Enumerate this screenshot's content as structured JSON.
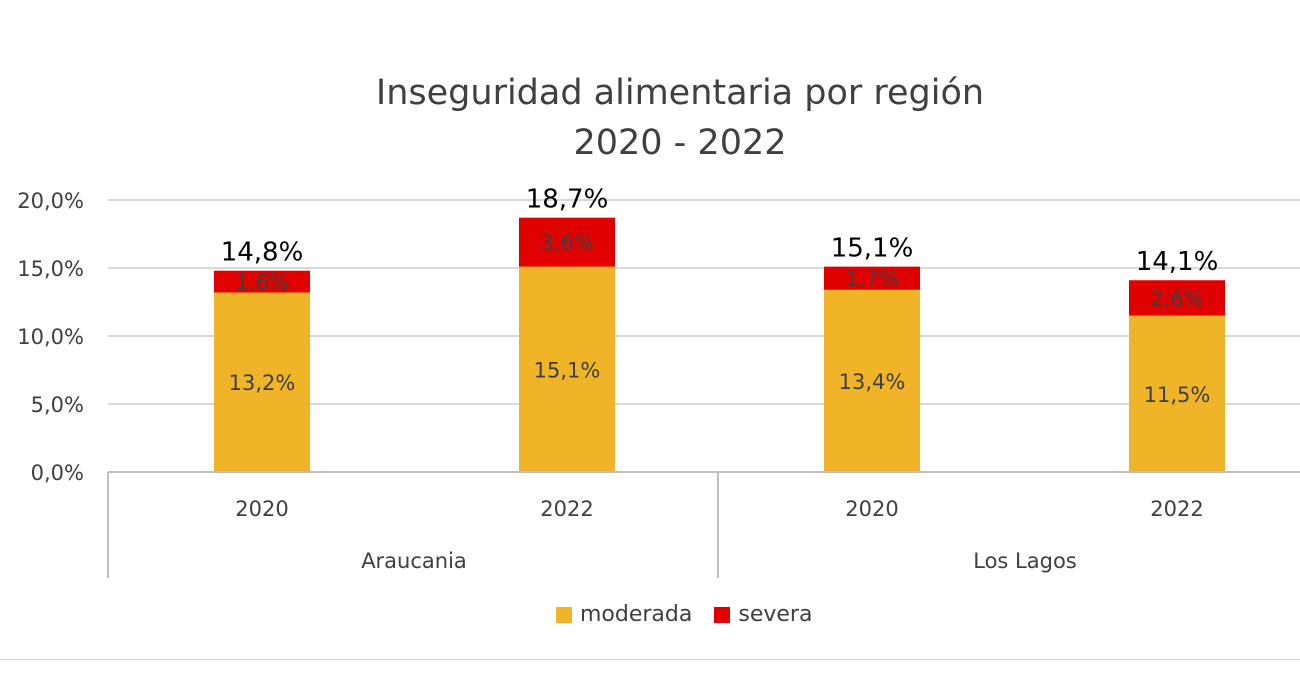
{
  "chart_data": {
    "type": "bar",
    "stacked": true,
    "title_lines": [
      "Inseguridad alimentaria por región",
      "2020 - 2022"
    ],
    "groups": [
      {
        "name": "Araucania",
        "categories": [
          "2020",
          "2022"
        ]
      },
      {
        "name": "Los Lagos",
        "categories": [
          "2020",
          "2022"
        ]
      }
    ],
    "categories": [
      "2020",
      "2022",
      "2020",
      "2022"
    ],
    "series": [
      {
        "name": "moderada",
        "color": "#F0B429",
        "values": [
          13.2,
          15.1,
          13.4,
          11.5
        ],
        "labels": [
          "13,2%",
          "15,1%",
          "13,4%",
          "11,5%"
        ]
      },
      {
        "name": "severa",
        "color": "#E00000",
        "values": [
          1.6,
          3.6,
          1.7,
          2.6
        ],
        "labels": [
          "1,6%",
          "3,6%",
          "1,7%",
          "2,6%"
        ]
      }
    ],
    "totals": [
      14.8,
      18.7,
      15.1,
      14.1
    ],
    "total_labels": [
      "14,8%",
      "18,7%",
      "15,1%",
      "14,1%"
    ],
    "ylim": [
      0,
      20
    ],
    "yticks": [
      0,
      5,
      10,
      15,
      20
    ],
    "ytick_labels": [
      "0,0%",
      "5,0%",
      "10,0%",
      "15,0%",
      "20,0%"
    ],
    "grid": true,
    "legend_position": "bottom",
    "legend": [
      "moderada",
      "severa"
    ]
  }
}
